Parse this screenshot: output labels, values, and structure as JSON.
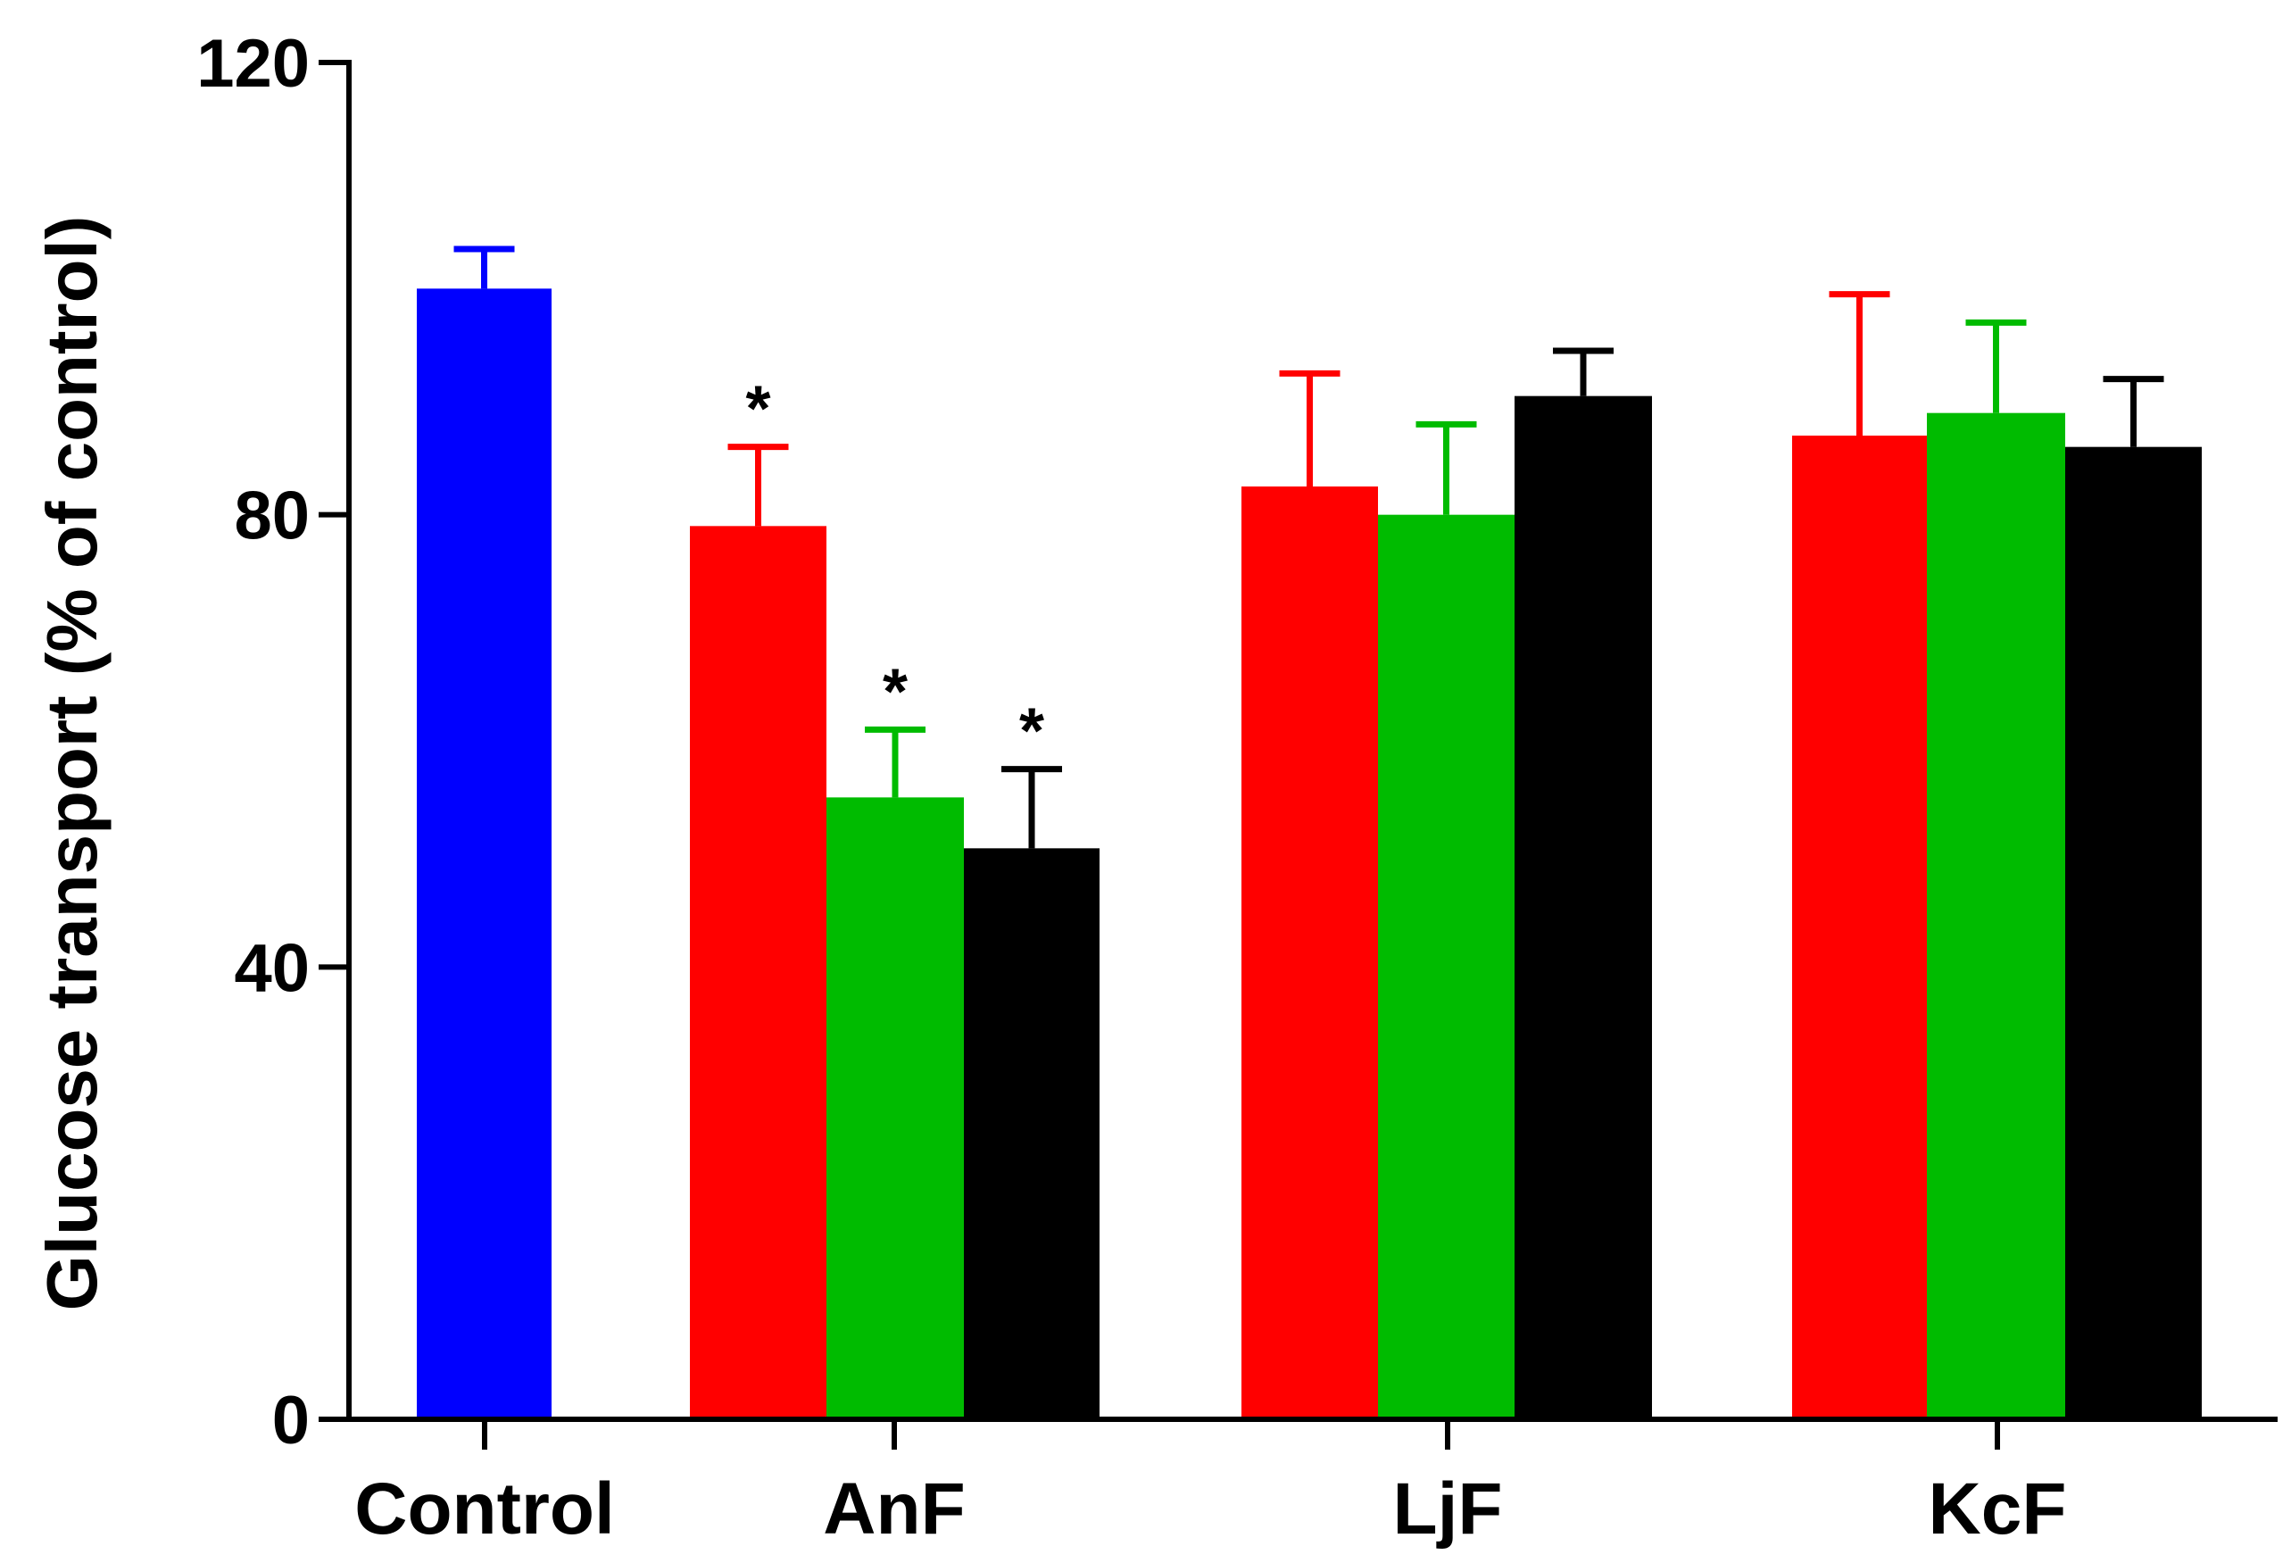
{
  "chart_data": {
    "type": "bar",
    "title": "",
    "xlabel": "",
    "ylabel": "Glucose transport (% of control)",
    "ylim": [
      0,
      120
    ],
    "yticks": [
      0,
      40,
      80,
      120
    ],
    "grid": false,
    "categories": [
      "Control",
      "AnF",
      "LjF",
      "KcF"
    ],
    "bars": [
      {
        "group": "Control",
        "color": "#0000ff",
        "value": 100,
        "error": 3.5,
        "significant": false
      },
      {
        "group": "AnF",
        "color": "#ff0000",
        "value": 79,
        "error": 7,
        "significant": true
      },
      {
        "group": "AnF",
        "color": "#00bb00",
        "value": 55,
        "error": 6,
        "significant": true
      },
      {
        "group": "AnF",
        "color": "#000000",
        "value": 50.5,
        "error": 7,
        "significant": true
      },
      {
        "group": "LjF",
        "color": "#ff0000",
        "value": 82.5,
        "error": 10,
        "significant": false
      },
      {
        "group": "LjF",
        "color": "#00bb00",
        "value": 80,
        "error": 8,
        "significant": false
      },
      {
        "group": "LjF",
        "color": "#000000",
        "value": 90.5,
        "error": 4,
        "significant": false
      },
      {
        "group": "KcF",
        "color": "#ff0000",
        "value": 87,
        "error": 12.5,
        "significant": false
      },
      {
        "group": "KcF",
        "color": "#00bb00",
        "value": 89,
        "error": 8,
        "significant": false
      },
      {
        "group": "KcF",
        "color": "#000000",
        "value": 86,
        "error": 6,
        "significant": false
      }
    ],
    "significance_marker": "*"
  }
}
